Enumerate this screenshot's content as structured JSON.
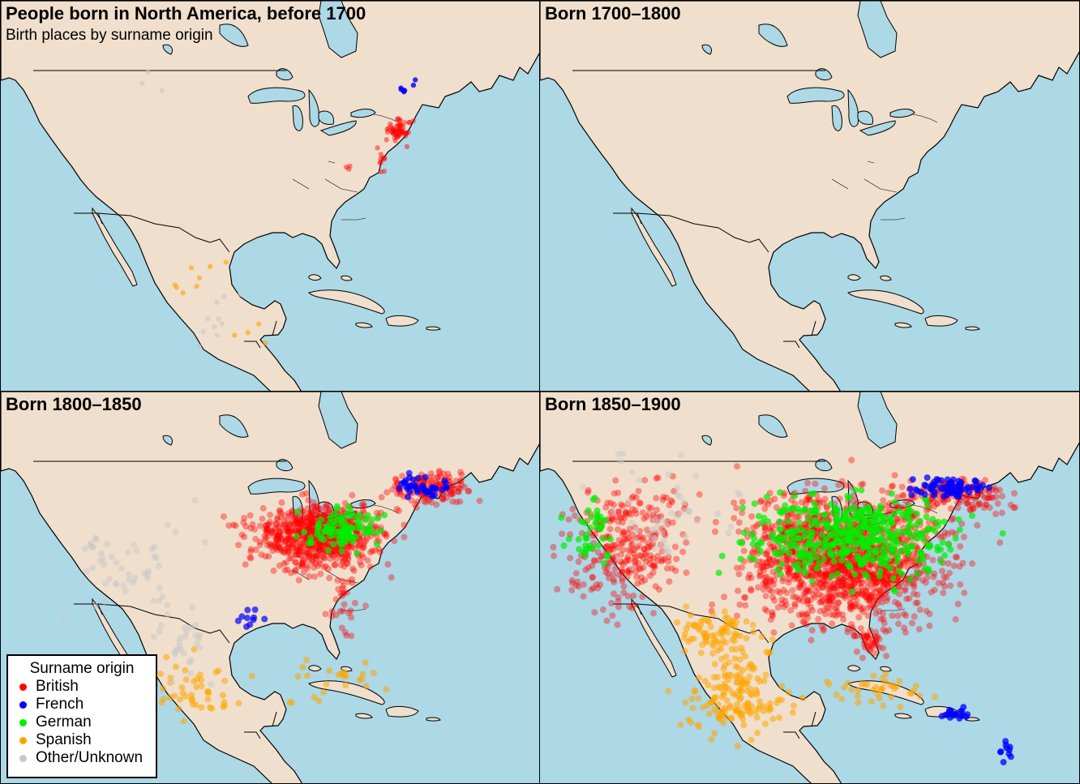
{
  "title": "People born in North America, before 1700",
  "subtitle": "Birth places by surname origin",
  "panels": [
    {
      "id": "p1",
      "label": "before 1700"
    },
    {
      "id": "p2",
      "label": "Born 1700–1800"
    },
    {
      "id": "p3",
      "label": "Born 1800–1850"
    },
    {
      "id": "p4",
      "label": "Born 1850–1900"
    }
  ],
  "legend": {
    "title": "Surname origin",
    "items": [
      {
        "name": "British",
        "color": "#ff0000"
      },
      {
        "name": "French",
        "color": "#0000ff"
      },
      {
        "name": "German",
        "color": "#00ee00"
      },
      {
        "name": "Spanish",
        "color": "#ffa500"
      },
      {
        "name": "Other/Unknown",
        "color": "#c8c8c8"
      }
    ]
  },
  "colors": {
    "ocean": "#add8e6",
    "land": "#f0dfcc",
    "border": "#000000"
  }
}
